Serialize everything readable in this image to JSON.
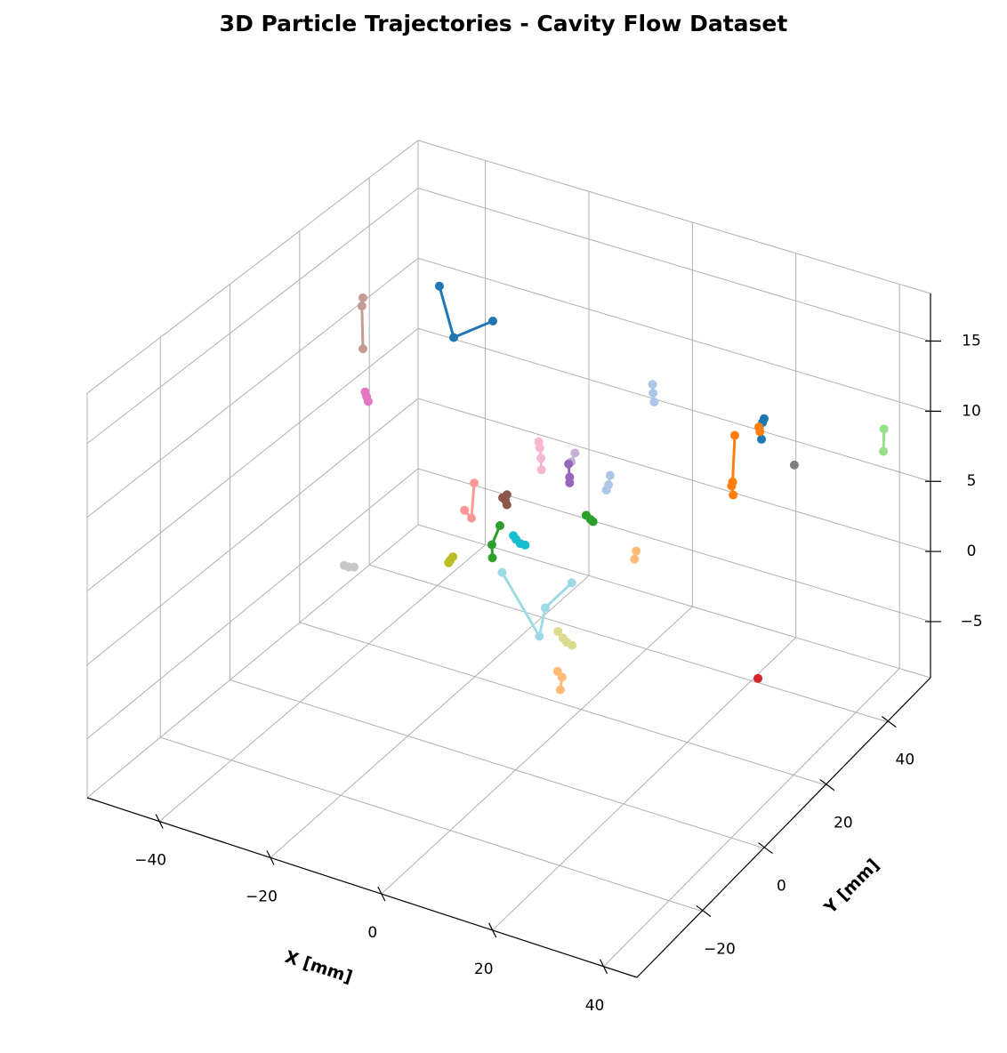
{
  "chart_data": {
    "type": "line3d",
    "title": "3D Particle Trajectories - Cavity Flow Dataset",
    "xlabel": "X [mm]",
    "ylabel": "Y [mm]",
    "xlim": [
      -53,
      46
    ],
    "ylim": [
      -41,
      54
    ],
    "zlim": [
      -9,
      18.4
    ],
    "xticks": [
      {
        "value": -40,
        "label": "−40"
      },
      {
        "value": -20,
        "label": "−20"
      },
      0,
      20,
      40
    ],
    "yticks": [
      {
        "value": -20,
        "label": "−20"
      },
      0,
      20,
      40
    ],
    "zticks": [
      {
        "value": -5,
        "label": "−5"
      },
      0,
      5,
      10,
      15
    ],
    "grid": true,
    "series": [
      {
        "color": "#c49c94",
        "x": [
          -50.9,
          -51.1,
          -50.9
        ],
        "y": [
          35,
          35,
          35
        ],
        "z": [
          11.1,
          10.5,
          7.5
        ]
      },
      {
        "color": "#e377c2",
        "x": [
          -50.5,
          -50.2,
          -49.9
        ],
        "y": [
          35,
          35,
          35
        ],
        "z": [
          4.5,
          4.2,
          3.9
        ]
      },
      {
        "color": "#1f77b4",
        "x": [
          -30.2,
          -27.5,
          -20.1
        ],
        "y": [
          25.5,
          25.5,
          25.5
        ],
        "z": [
          16.1,
          12.8,
          14.8
        ]
      },
      {
        "color": "#aec7e8",
        "x": [
          10.1,
          10.2,
          10.4
        ],
        "y": [
          25.5,
          25.5,
          25.5
        ],
        "z": [
          13.8,
          13.2,
          12.6
        ]
      },
      {
        "color": "#aec7e8",
        "x": [
          7.9,
          7.6,
          7.2
        ],
        "y": [
          16,
          16,
          16
        ],
        "z": [
          9.1,
          8.4,
          8.0
        ]
      },
      {
        "color": "#ff7f0e",
        "x": [
          31.3,
          30.9,
          30.7,
          31.0
        ],
        "y": [
          16,
          16,
          16,
          16
        ],
        "z": [
          14.6,
          11.3,
          11.0,
          10.4
        ]
      },
      {
        "color": "#1f77b4",
        "x": [
          31.2,
          30.9,
          30.7
        ],
        "y": [
          25.5,
          25.5,
          25.5
        ],
        "z": [
          13.8,
          13.5,
          12.3
        ]
      },
      {
        "color": "#ff7f0e",
        "x": [
          30.2,
          30.4
        ],
        "y": [
          25.5,
          25.5
        ],
        "z": [
          13.1,
          12.8
        ]
      },
      {
        "color": "#7f7f7f",
        "x": [
          36.9
        ],
        "y": [
          25.5
        ],
        "z": [
          11.2
        ]
      },
      {
        "color": "#98df8a",
        "x": [
          42.7,
          42.6
        ],
        "y": [
          44.5,
          44.5
        ],
        "z": [
          10.4,
          8.8
        ]
      },
      {
        "color": "#f7b6d2",
        "x": [
          -5.5,
          -5.3,
          -5.1,
          -5.0
        ],
        "y": [
          16,
          16,
          16,
          16
        ],
        "z": [
          9.9,
          9.5,
          8.8,
          8.0
        ]
      },
      {
        "color": "#c5b0d5",
        "x": [
          1.3,
          0.6
        ],
        "y": [
          16,
          16
        ],
        "z": [
          9.9,
          9.2
        ]
      },
      {
        "color": "#9467bd",
        "x": [
          0.1,
          0.3,
          0.3
        ],
        "y": [
          16,
          16,
          16
        ],
        "z": [
          9.0,
          8.1,
          7.7
        ]
      },
      {
        "color": "#ff9896",
        "x": [
          -11.7,
          -12.2,
          -13.5
        ],
        "y": [
          6.5,
          6.5,
          6.5
        ],
        "z": [
          8.2,
          5.7,
          6.1
        ]
      },
      {
        "color": "#8c564b",
        "x": [
          -6.4,
          -5.6,
          -5.9,
          -5.6
        ],
        "y": [
          6.5,
          6.5,
          6.5,
          6.5
        ],
        "z": [
          7.8,
          8.1,
          7.7,
          7.4
        ]
      },
      {
        "color": "#2ca02c",
        "x": [
          -6.9,
          -8.4,
          -8.3
        ],
        "y": [
          6.5,
          6.5,
          6.5
        ],
        "z": [
          5.8,
          4.3,
          3.4
        ]
      },
      {
        "color": "#2ca02c",
        "x": [
          3.4,
          4.2,
          4.7
        ],
        "y": [
          16,
          16,
          16
        ],
        "z": [
          5.8,
          5.6,
          5.5
        ]
      },
      {
        "color": "#17becf",
        "x": [
          -4.4,
          -3.9,
          -3.1,
          -2.2
        ],
        "y": [
          6.5,
          6.5,
          6.5,
          6.5
        ],
        "z": [
          5.4,
          5.2,
          5.0,
          5.0
        ]
      },
      {
        "color": "#bcbd22",
        "x": [
          -9.8,
          -10.3,
          -10.6
        ],
        "y": [
          -3,
          -3,
          -3
        ],
        "z": [
          5.2,
          4.9,
          4.7
        ]
      },
      {
        "color": "#c7c7c7",
        "x": [
          -24.0,
          -23.2,
          -22.2
        ],
        "y": [
          -12.5,
          -12.5,
          -12.5
        ],
        "z": [
          4.8,
          4.8,
          4.9
        ]
      },
      {
        "color": "#ffbb78",
        "x": [
          18.5,
          18.2
        ],
        "y": [
          6.5,
          6.5
        ],
        "z": [
          7.0,
          6.4
        ]
      },
      {
        "color": "#9edae5",
        "x": [
          -0.7,
          6.2,
          7.3,
          12.2
        ],
        "y": [
          -3,
          -3,
          -3,
          -3
        ],
        "z": [
          5.2,
          1.6,
          3.7,
          6.0
        ]
      },
      {
        "color": "#dbdb8d",
        "x": [
          15.3,
          16.2,
          16.9,
          17.9
        ],
        "y": [
          -12.5,
          -12.5,
          -12.5,
          -12.5
        ],
        "z": [
          4.95,
          4.6,
          4.4,
          4.3
        ]
      },
      {
        "color": "#ffbb78",
        "x": [
          20.8,
          21.6,
          21.3
        ],
        "y": [
          -22,
          -22,
          -22
        ],
        "z": [
          4.8,
          4.5,
          3.6
        ]
      },
      {
        "color": "#d62728",
        "x": [
          41.2
        ],
        "y": [
          6.5
        ],
        "z": [
          0.8
        ]
      }
    ]
  }
}
